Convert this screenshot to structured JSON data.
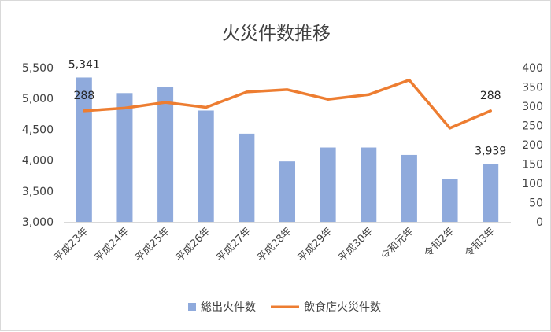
{
  "chart_data": {
    "type": "bar+line",
    "title": "火災件数推移",
    "categories": [
      "平成23年",
      "平成24年",
      "平成25年",
      "平成26年",
      "平成27年",
      "平成28年",
      "平成29年",
      "平成30年",
      "令和元年",
      "令和2年",
      "令和3年"
    ],
    "series": [
      {
        "name": "総出火件数",
        "type": "bar",
        "axis": "left",
        "color": "#8faadc",
        "values": [
          5341,
          5088,
          5190,
          4805,
          4430,
          3980,
          4205,
          4205,
          4085,
          3695,
          3939
        ]
      },
      {
        "name": "飲食店火災件数",
        "type": "line",
        "axis": "right",
        "color": "#ed7d31",
        "values": [
          288,
          295,
          310,
          297,
          337,
          343,
          318,
          330,
          368,
          243,
          288
        ]
      }
    ],
    "y_left": {
      "ylim": [
        3000,
        5500
      ],
      "ticks": [
        "3,000",
        "3,500",
        "4,000",
        "4,500",
        "5,000",
        "5,500"
      ]
    },
    "y_right": {
      "ylim": [
        0,
        400
      ],
      "ticks": [
        "0",
        "50",
        "100",
        "150",
        "200",
        "250",
        "300",
        "350",
        "400"
      ]
    },
    "data_labels": [
      {
        "series": 0,
        "index": 0,
        "text": "5,341"
      },
      {
        "series": 1,
        "index": 0,
        "text": "288"
      },
      {
        "series": 0,
        "index": 10,
        "text": "3,939"
      },
      {
        "series": 1,
        "index": 10,
        "text": "288"
      }
    ],
    "legend": {
      "position": "bottom"
    },
    "grid": false
  }
}
